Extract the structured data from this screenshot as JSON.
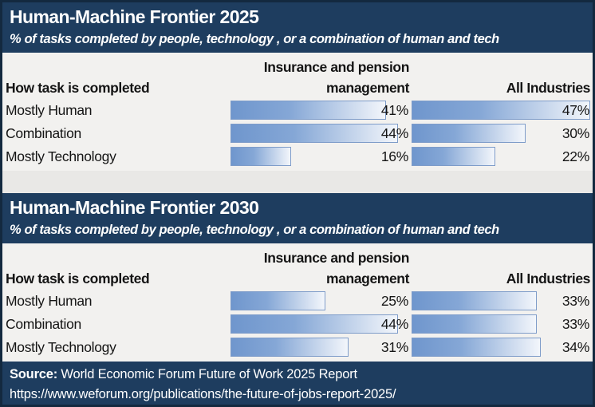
{
  "page_title": "Human-Machine Frontier infographic",
  "colors": {
    "header_background": "#1e3d5f",
    "outer_border": "#13293f",
    "table_background": "#f2f1ef",
    "gap_background": "#e9e8e6",
    "bar_fill_left": "#6f96cd",
    "bar_fill_right": "#f3f6fb",
    "bar_border": "#7e9cc9",
    "text_dark": "#151515",
    "text_light": "#ffffff"
  },
  "bar_scale_max": 47,
  "sections": [
    {
      "title": "Human-Machine Frontier 2025",
      "subtitle": "% of tasks completed by people, technology , or a combination of human and tech",
      "table": {
        "row_header": "How task is completed",
        "columns": [
          "Insurance and pension management",
          "All Industries"
        ],
        "rows": [
          {
            "label": "Mostly Human",
            "values": [
              "41%",
              "47%"
            ]
          },
          {
            "label": "Combination",
            "values": [
              "44%",
              "30%"
            ]
          },
          {
            "label": "Mostly Technology",
            "values": [
              "16%",
              "22%"
            ]
          }
        ]
      }
    },
    {
      "title": "Human-Machine Frontier 2030",
      "subtitle": "% of tasks completed by people, technology , or a combination of human and tech",
      "table": {
        "row_header": "How task is completed",
        "columns": [
          "Insurance and pension management",
          "All Industries"
        ],
        "rows": [
          {
            "label": "Mostly Human",
            "values": [
              "25%",
              "33%"
            ]
          },
          {
            "label": "Combination",
            "values": [
              "44%",
              "33%"
            ]
          },
          {
            "label": "Mostly Technology",
            "values": [
              "31%",
              "34%"
            ]
          }
        ]
      }
    }
  ],
  "footer": {
    "source_label": "Source:",
    "source_text": " World Economic Forum Future of Work 2025 Report",
    "url": "https://www.weforum.org/publications/the-future-of-jobs-report-2025/"
  },
  "chart_data": [
    {
      "type": "bar",
      "orientation": "horizontal",
      "title": "Human-Machine Frontier 2025",
      "subtitle": "% of tasks completed by people, technology , or a combination of human and tech",
      "categories": [
        "Mostly Human",
        "Combination",
        "Mostly Technology"
      ],
      "series": [
        {
          "name": "Insurance and pension management",
          "values": [
            41,
            44,
            16
          ]
        },
        {
          "name": "All Industries",
          "values": [
            47,
            30,
            22
          ]
        }
      ],
      "value_unit": "%",
      "xlim": [
        0,
        47
      ],
      "grid": false,
      "legend_position": "column-headers"
    },
    {
      "type": "bar",
      "orientation": "horizontal",
      "title": "Human-Machine Frontier 2030",
      "subtitle": "% of tasks completed by people, technology , or a combination of human and tech",
      "categories": [
        "Mostly Human",
        "Combination",
        "Mostly Technology"
      ],
      "series": [
        {
          "name": "Insurance and pension management",
          "values": [
            25,
            44,
            31
          ]
        },
        {
          "name": "All Industries",
          "values": [
            33,
            33,
            34
          ]
        }
      ],
      "value_unit": "%",
      "xlim": [
        0,
        47
      ],
      "grid": false,
      "legend_position": "column-headers"
    }
  ]
}
